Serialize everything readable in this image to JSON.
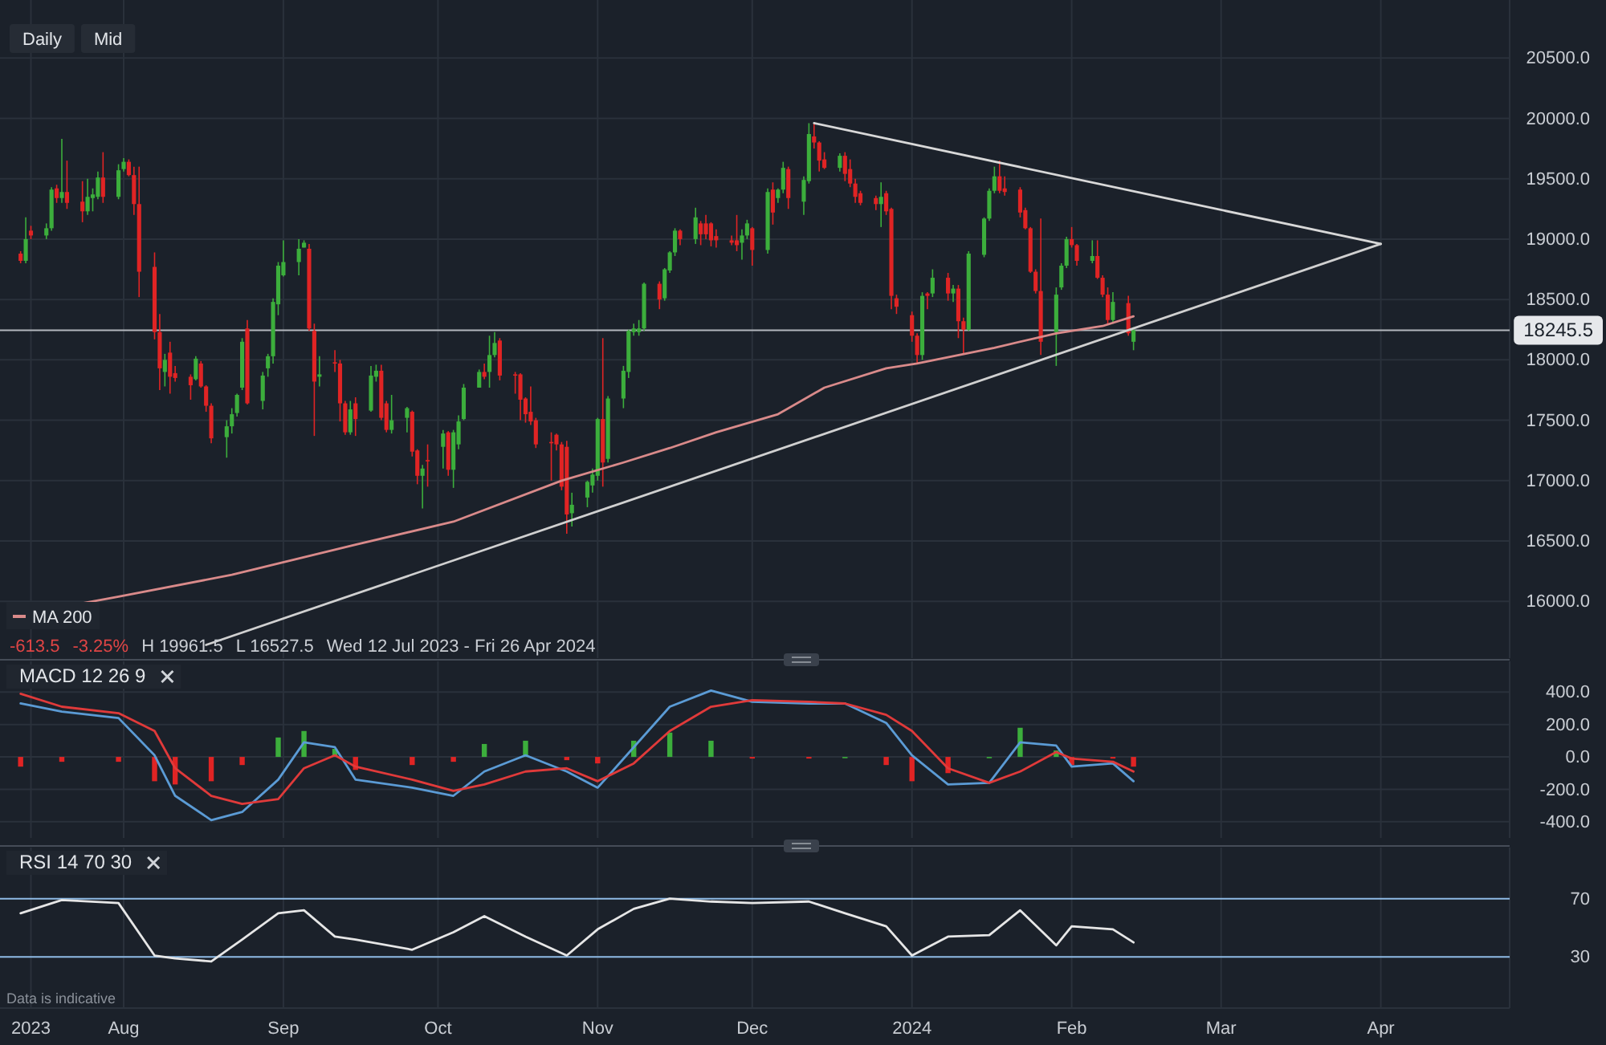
{
  "chart_data": [
    {
      "type": "candlestick",
      "annotations": [
        "Daily",
        "Mid",
        "-613.5",
        "-3.25%",
        "H 19961.5",
        "L 16527.5",
        "Wed 12 Jul 2023 - Fri 26 Apr 2024"
      ],
      "xlim": [
        "2023-07-08",
        "2024-04-26"
      ],
      "ylim": [
        15530,
        20980
      ],
      "xticks": [
        {
          "value": "2023-07-14",
          "label": null
        },
        {
          "value": "2023-08-01",
          "label": null
        },
        {
          "value": "2023-09-01",
          "label": null
        },
        {
          "value": "2023-10-01",
          "label": null
        },
        {
          "value": "2023-11-01",
          "label": null
        },
        {
          "value": "2023-12-01",
          "label": null
        },
        {
          "value": "2024-01-01",
          "label": null
        },
        {
          "value": "2024-02-01",
          "label": null
        },
        {
          "value": "2024-03-01",
          "label": null
        },
        {
          "value": "2024-04-01",
          "label": null
        }
      ],
      "yticks": [
        {
          "value": 16000,
          "label": "16000.0"
        },
        {
          "value": 16500,
          "label": "16500.0"
        },
        {
          "value": 17000,
          "label": "17000.0"
        },
        {
          "value": 17500,
          "label": "17500.0"
        },
        {
          "value": 18000,
          "label": "18000.0"
        },
        {
          "value": 18500,
          "label": "18500.0"
        },
        {
          "value": 19000,
          "label": "19000.0"
        },
        {
          "value": 19500,
          "label": "19500.0"
        },
        {
          "value": 20000,
          "label": "20000.0"
        },
        {
          "value": 20500,
          "label": "20500.0"
        }
      ],
      "tick_labels": "y",
      "grid": true,
      "legend": "bottom left",
      "ref_lines": [
        {
          "axis": "y",
          "value": 18245.5,
          "label": "18245.5",
          "color": "#b4b8be"
        }
      ],
      "x": [
        "2023-07-12",
        "2023-07-13",
        "2023-07-14",
        "2023-07-17",
        "2023-07-18",
        "2023-07-19",
        "2023-07-20",
        "2023-07-21",
        "2023-07-24",
        "2023-07-25",
        "2023-07-26",
        "2023-07-27",
        "2023-07-28",
        "2023-07-31",
        "2023-08-01",
        "2023-08-02",
        "2023-08-03",
        "2023-08-04",
        "2023-08-07",
        "2023-08-08",
        "2023-08-09",
        "2023-08-10",
        "2023-08-11",
        "2023-08-14",
        "2023-08-15",
        "2023-08-16",
        "2023-08-17",
        "2023-08-18",
        "2023-08-21",
        "2023-08-22",
        "2023-08-23",
        "2023-08-24",
        "2023-08-25",
        "2023-08-28",
        "2023-08-29",
        "2023-08-30",
        "2023-08-31",
        "2023-09-01",
        "2023-09-04",
        "2023-09-05",
        "2023-09-06",
        "2023-09-07",
        "2023-09-08",
        "2023-09-11",
        "2023-09-12",
        "2023-09-13",
        "2023-09-14",
        "2023-09-15",
        "2023-09-18",
        "2023-09-19",
        "2023-09-20",
        "2023-09-21",
        "2023-09-22",
        "2023-09-25",
        "2023-09-26",
        "2023-09-27",
        "2023-09-28",
        "2023-09-29",
        "2023-10-02",
        "2023-10-03",
        "2023-10-04",
        "2023-10-05",
        "2023-10-06",
        "2023-10-09",
        "2023-10-10",
        "2023-10-11",
        "2023-10-12",
        "2023-10-13",
        "2023-10-16",
        "2023-10-17",
        "2023-10-18",
        "2023-10-19",
        "2023-10-20",
        "2023-10-23",
        "2023-10-24",
        "2023-10-25",
        "2023-10-26",
        "2023-10-27",
        "2023-10-30",
        "2023-10-31",
        "2023-11-01",
        "2023-11-02",
        "2023-11-03",
        "2023-11-06",
        "2023-11-07",
        "2023-11-08",
        "2023-11-09",
        "2023-11-10",
        "2023-11-13",
        "2023-11-14",
        "2023-11-15",
        "2023-11-16",
        "2023-11-17",
        "2023-11-20",
        "2023-11-21",
        "2023-11-22",
        "2023-11-23",
        "2023-11-24",
        "2023-11-27",
        "2023-11-28",
        "2023-11-29",
        "2023-11-30",
        "2023-12-01",
        "2023-12-04",
        "2023-12-05",
        "2023-12-06",
        "2023-12-07",
        "2023-12-08",
        "2023-12-11",
        "2023-12-12",
        "2023-12-13",
        "2023-12-14",
        "2023-12-15",
        "2023-12-18",
        "2023-12-19",
        "2023-12-20",
        "2023-12-21",
        "2023-12-22",
        "2023-12-25",
        "2023-12-26",
        "2023-12-27",
        "2023-12-28",
        "2023-12-29",
        "2024-01-01",
        "2024-01-02",
        "2024-01-03",
        "2024-01-04",
        "2024-01-05",
        "2024-01-08",
        "2024-01-09",
        "2024-01-10",
        "2024-01-11",
        "2024-01-12",
        "2024-01-15",
        "2024-01-16",
        "2024-01-17",
        "2024-01-18",
        "2024-01-19",
        "2024-01-22",
        "2024-01-23",
        "2024-01-24",
        "2024-01-25",
        "2024-01-26",
        "2024-01-29",
        "2024-01-30",
        "2024-01-31",
        "2024-02-01",
        "2024-02-02",
        "2024-02-05",
        "2024-02-06",
        "2024-02-07",
        "2024-02-08",
        "2024-02-09",
        "2024-02-12",
        "2024-02-13"
      ],
      "ohlc": [
        [
          18880,
          18900,
          18800,
          18820
        ],
        [
          18820,
          19180,
          18800,
          19000
        ],
        [
          19070,
          19110,
          19000,
          19030
        ],
        [
          19030,
          19130,
          19000,
          19090
        ],
        [
          19090,
          19430,
          19070,
          19410
        ],
        [
          19420,
          19450,
          19300,
          19340
        ],
        [
          19340,
          19830,
          19300,
          19390
        ],
        [
          19390,
          19650,
          19250,
          19300
        ],
        [
          19310,
          19480,
          19140,
          19230
        ],
        [
          19230,
          19500,
          19200,
          19350
        ],
        [
          19340,
          19420,
          19230,
          19370
        ],
        [
          19350,
          19560,
          19330,
          19510
        ],
        [
          19510,
          19720,
          19300,
          19350
        ],
        [
          19350,
          19620,
          19330,
          19570
        ],
        [
          19580,
          19670,
          19560,
          19640
        ],
        [
          19640,
          19660,
          19520,
          19530
        ],
        [
          19530,
          19600,
          19200,
          19290
        ],
        [
          19290,
          19600,
          18520,
          18730
        ],
        [
          18770,
          18890,
          18170,
          18230
        ],
        [
          18230,
          18380,
          17750,
          17930
        ],
        [
          17900,
          18050,
          17780,
          18000
        ],
        [
          18060,
          18150,
          17720,
          17860
        ],
        [
          17890,
          17950,
          17820,
          17850
        ],
        [
          17860,
          17880,
          17670,
          17790
        ],
        [
          17840,
          18030,
          17830,
          18010
        ],
        [
          17970,
          17990,
          17770,
          17780
        ],
        [
          17780,
          17790,
          17570,
          17620
        ],
        [
          17620,
          17640,
          17310,
          17350
        ],
        [
          17360,
          17500,
          17190,
          17450
        ],
        [
          17450,
          17600,
          17390,
          17550
        ],
        [
          17560,
          17720,
          17530,
          17710
        ],
        [
          17770,
          18180,
          17750,
          18150
        ],
        [
          18260,
          18330,
          17630,
          17640
        ],
        [
          17660,
          17900,
          17590,
          17870
        ],
        [
          17930,
          18050,
          17860,
          18030
        ],
        [
          18030,
          18510,
          17970,
          18480
        ],
        [
          18460,
          18810,
          18370,
          18780
        ],
        [
          18700,
          18990,
          18690,
          18810
        ],
        [
          18810,
          19000,
          18700,
          18920
        ],
        [
          18930,
          18990,
          18930,
          18970
        ],
        [
          18920,
          18960,
          18240,
          18260
        ],
        [
          18240,
          18300,
          17370,
          17820
        ],
        [
          17860,
          18030,
          17780,
          17880
        ],
        [
          17980,
          18080,
          17900,
          17970
        ],
        [
          17970,
          18000,
          17490,
          17640
        ],
        [
          17640,
          17660,
          17380,
          17400
        ],
        [
          17400,
          17660,
          17380,
          17590
        ],
        [
          17640,
          17690,
          17370,
          17510
        ],
        [
          17580,
          17950,
          17570,
          17870
        ],
        [
          17860,
          17960,
          17820,
          17910
        ],
        [
          17910,
          17960,
          17500,
          17520
        ],
        [
          17640,
          17660,
          17400,
          17420
        ],
        [
          17420,
          17710,
          17390,
          17500
        ],
        [
          17520,
          17610,
          17400,
          17600
        ],
        [
          17570,
          17580,
          17200,
          17240
        ],
        [
          17250,
          17260,
          16970,
          17040
        ],
        [
          17040,
          17130,
          16770,
          17100
        ],
        [
          17170,
          17300,
          16950,
          17160
        ],
        [
          17280,
          17420,
          17100,
          17390
        ],
        [
          17400,
          17410,
          17040,
          17090
        ],
        [
          17090,
          17420,
          16940,
          17400
        ],
        [
          17300,
          17540,
          17260,
          17490
        ],
        [
          17510,
          17800,
          17500,
          17770
        ],
        [
          17770,
          17920,
          17770,
          17900
        ],
        [
          17900,
          17970,
          17840,
          17860
        ],
        [
          17900,
          18200,
          17770,
          18040
        ],
        [
          18040,
          18230,
          18020,
          18140
        ],
        [
          18160,
          18180,
          17830,
          17870
        ],
        [
          17880,
          17900,
          17720,
          17870
        ],
        [
          17880,
          17890,
          17500,
          17670
        ],
        [
          17680,
          17690,
          17480,
          17550
        ],
        [
          17570,
          17780,
          17460,
          17490
        ],
        [
          17500,
          17520,
          17270,
          17300
        ],
        [
          17320,
          17400,
          17000,
          17310
        ],
        [
          17380,
          17390,
          17250,
          17300
        ],
        [
          17300,
          17320,
          16920,
          16950
        ],
        [
          17280,
          17330,
          16560,
          16720
        ],
        [
          16730,
          16900,
          16620,
          16800
        ],
        [
          16860,
          17000,
          16780,
          16990
        ],
        [
          16960,
          17100,
          16900,
          17050
        ],
        [
          17040,
          17520,
          17000,
          17510
        ],
        [
          17510,
          18180,
          16950,
          17150
        ],
        [
          17180,
          17700,
          17150,
          17680
        ],
        [
          17680,
          17950,
          17600,
          17910
        ],
        [
          17900,
          18250,
          17850,
          18240
        ],
        [
          18230,
          18300,
          18200,
          18260
        ],
        [
          18230,
          18330,
          18200,
          18260
        ],
        [
          18260,
          18640,
          18240,
          18630
        ],
        [
          18630,
          18650,
          18420,
          18500
        ],
        [
          18510,
          18760,
          18490,
          18750
        ],
        [
          18740,
          18900,
          18720,
          18890
        ],
        [
          18890,
          19090,
          18860,
          19070
        ],
        [
          19070,
          19080,
          18950,
          19000
        ],
        [
          19000,
          19260,
          18960,
          19180
        ],
        [
          19130,
          19150,
          18950,
          19040
        ],
        [
          19130,
          19200,
          19000,
          19040
        ],
        [
          19130,
          19140,
          18940,
          18990
        ],
        [
          19025,
          19080,
          18930,
          18990
        ],
        [
          18990,
          19030,
          18950,
          18970
        ],
        [
          18990,
          19200,
          18900,
          18950
        ],
        [
          18970,
          19080,
          18830,
          19030
        ],
        [
          19030,
          19160,
          19000,
          19130
        ],
        [
          19090,
          19100,
          18780,
          18910
        ],
        [
          18910,
          19420,
          18880,
          19390
        ],
        [
          19410,
          19470,
          19120,
          19220
        ],
        [
          19340,
          19420,
          19300,
          19410
        ],
        [
          19410,
          19640,
          19380,
          19590
        ],
        [
          19580,
          19600,
          19250,
          19340
        ],
        [
          19310,
          19520,
          19200,
          19490
        ],
        [
          19480,
          19960,
          19460,
          19870
        ],
        [
          19850,
          19960,
          19750,
          19800
        ],
        [
          19800,
          19810,
          19560,
          19650
        ],
        [
          19660,
          19720,
          19580,
          19590
        ],
        [
          19590,
          19710,
          19560,
          19690
        ],
        [
          19690,
          19720,
          19480,
          19540
        ],
        [
          19580,
          19660,
          19430,
          19460
        ],
        [
          19460,
          19500,
          19300,
          19350
        ],
        [
          19380,
          19400,
          19280,
          19300
        ],
        [
          19340,
          19360,
          19240,
          19290
        ],
        [
          19290,
          19470,
          19100,
          19350
        ],
        [
          19380,
          19400,
          19200,
          19230
        ],
        [
          19250,
          19260,
          18420,
          18530
        ],
        [
          18510,
          18540,
          18380,
          18440
        ],
        [
          18370,
          18400,
          18150,
          18200
        ],
        [
          18200,
          18220,
          17970,
          18040
        ],
        [
          18040,
          18560,
          18000,
          18530
        ],
        [
          18550,
          18560,
          18420,
          18530
        ],
        [
          18550,
          18750,
          18520,
          18680
        ],
        [
          18680,
          18720,
          18490,
          18550
        ],
        [
          18550,
          18620,
          18480,
          18590
        ],
        [
          18590,
          18620,
          18180,
          18320
        ],
        [
          18320,
          18350,
          18050,
          18250
        ],
        [
          18250,
          18900,
          18240,
          18880
        ],
        [
          18870,
          19180,
          18850,
          19170
        ],
        [
          19170,
          19420,
          19150,
          19400
        ],
        [
          19400,
          19600,
          19380,
          19520
        ],
        [
          19520,
          19650,
          19380,
          19400
        ],
        [
          19420,
          19520,
          19360,
          19390
        ],
        [
          19410,
          19430,
          19180,
          19220
        ],
        [
          19240,
          19260,
          19080,
          19090
        ],
        [
          19090,
          19100,
          18720,
          18730
        ],
        [
          18730,
          18750,
          18550,
          18570
        ],
        [
          18570,
          19170,
          18040,
          18150
        ],
        [
          18230,
          18600,
          17950,
          18540
        ],
        [
          18600,
          18800,
          18580,
          18780
        ],
        [
          18780,
          19020,
          18760,
          19000
        ],
        [
          19000,
          19100,
          18930,
          18950
        ],
        [
          18950,
          18960,
          18780,
          18820
        ],
        [
          18820,
          18990,
          18800,
          18860
        ],
        [
          18860,
          18990,
          18670,
          18680
        ],
        [
          18680,
          18700,
          18520,
          18540
        ],
        [
          18540,
          18600,
          18300,
          18330
        ],
        [
          18330,
          18560,
          18300,
          18480
        ],
        [
          18470,
          18530,
          18200,
          18220
        ],
        [
          18150,
          18270,
          18080,
          18245.5
        ]
      ],
      "series": [
        {
          "type": "line",
          "name": "MA 200",
          "color": "#d98a8a",
          "x": [
            "2023-07-12",
            "2023-07-31",
            "2023-08-22",
            "2023-09-15",
            "2023-10-04",
            "2023-10-25",
            "2023-11-06",
            "2023-11-15",
            "2023-11-24",
            "2023-12-06",
            "2023-12-15",
            "2023-12-27",
            "2024-01-02",
            "2024-01-17",
            "2024-01-29",
            "2024-02-07",
            "2024-02-13"
          ],
          "values": [
            15890,
            16040,
            16220,
            16470,
            16660,
            17000,
            17150,
            17270,
            17400,
            17550,
            17770,
            17930,
            17970,
            18100,
            18220,
            18280,
            18360
          ]
        },
        {
          "type": "line",
          "color": "#d8d8d8",
          "x": [
            "2023-12-13",
            "2024-04-01"
          ],
          "values": [
            19960,
            18960
          ]
        },
        {
          "type": "line",
          "color": "#d0d0d0",
          "x": [
            "2023-08-17",
            "2024-04-01"
          ],
          "values": [
            15640,
            18960
          ]
        }
      ]
    },
    {
      "type": "line",
      "title": "MACD 12 26 9",
      "xlim": [
        "2023-07-08",
        "2024-04-26"
      ],
      "ylim": [
        -500,
        590
      ],
      "xticks": [
        {
          "value": "2023-07-14",
          "label": null
        },
        {
          "value": "2023-08-01",
          "label": null
        },
        {
          "value": "2023-09-01",
          "label": null
        },
        {
          "value": "2023-10-01",
          "label": null
        },
        {
          "value": "2023-11-01",
          "label": null
        },
        {
          "value": "2023-12-01",
          "label": null
        },
        {
          "value": "2024-01-01",
          "label": null
        },
        {
          "value": "2024-02-01",
          "label": null
        },
        {
          "value": "2024-03-01",
          "label": null
        },
        {
          "value": "2024-04-01",
          "label": null
        }
      ],
      "yticks": [
        {
          "value": -400,
          "label": "-400.0"
        },
        {
          "value": -200,
          "label": "-200.0"
        },
        {
          "value": 0,
          "label": "0.0"
        },
        {
          "value": 200,
          "label": "200.0"
        },
        {
          "value": 400,
          "label": "400.0"
        }
      ],
      "tick_labels": "y",
      "grid": true,
      "x": [
        "2023-07-12",
        "2023-07-20",
        "2023-07-31",
        "2023-08-07",
        "2023-08-11",
        "2023-08-18",
        "2023-08-24",
        "2023-08-31",
        "2023-09-05",
        "2023-09-11",
        "2023-09-15",
        "2023-09-26",
        "2023-10-04",
        "2023-10-10",
        "2023-10-18",
        "2023-10-26",
        "2023-11-01",
        "2023-11-08",
        "2023-11-15",
        "2023-11-23",
        "2023-12-01",
        "2023-12-12",
        "2023-12-19",
        "2023-12-27",
        "2024-01-01",
        "2024-01-08",
        "2024-01-16",
        "2024-01-22",
        "2024-01-29",
        "2024-02-01",
        "2024-02-09",
        "2024-02-13"
      ],
      "series": [
        {
          "type": "bar",
          "colors": [
            "#e02424",
            "#e02424",
            "#e02424",
            "#e02424",
            "#e02424",
            "#e02424",
            "#e02424",
            "#3cae3c",
            "#3cae3c",
            "#3cae3c",
            "#e02424",
            "#e02424",
            "#e02424",
            "#3cae3c",
            "#3cae3c",
            "#e02424",
            "#e02424",
            "#3cae3c",
            "#3cae3c",
            "#3cae3c",
            "#e02424",
            "#e02424",
            "#3cae3c",
            "#e02424",
            "#e02424",
            "#e02424",
            "#3cae3c",
            "#3cae3c",
            "#3cae3c",
            "#e02424",
            "#e02424",
            "#e02424"
          ],
          "values": [
            -60,
            -30,
            -30,
            -150,
            -170,
            -150,
            -50,
            120,
            160,
            50,
            -80,
            -50,
            -30,
            80,
            100,
            -20,
            -40,
            100,
            150,
            100,
            -10,
            -10,
            0,
            -50,
            -150,
            -100,
            0,
            180,
            40,
            -50,
            -10,
            -60
          ]
        },
        {
          "type": "line",
          "color": "#5b9bd5",
          "values": [
            330,
            280,
            240,
            10,
            -240,
            -390,
            -340,
            -140,
            90,
            60,
            -140,
            -190,
            -240,
            -90,
            10,
            -90,
            -190,
            60,
            310,
            410,
            340,
            330,
            330,
            210,
            10,
            -170,
            -160,
            90,
            70,
            -60,
            -40,
            -150
          ]
        },
        {
          "type": "line",
          "color": "#e03a3a",
          "values": [
            390,
            310,
            270,
            160,
            -70,
            -240,
            -290,
            -260,
            -70,
            10,
            -60,
            -140,
            -210,
            -170,
            -90,
            -70,
            -150,
            -40,
            160,
            310,
            350,
            340,
            330,
            260,
            160,
            -70,
            -160,
            -90,
            30,
            -10,
            -30,
            -90
          ]
        }
      ]
    },
    {
      "type": "line",
      "title": "RSI 14 70 30",
      "annotations": [
        "Data is indicative"
      ],
      "xlim": [
        "2023-07-08",
        "2024-04-26"
      ],
      "ylim": [
        -5,
        105
      ],
      "xticks": [
        {
          "value": "2023-07-14",
          "label": "2023"
        },
        {
          "value": "2023-08-01",
          "label": "Aug"
        },
        {
          "value": "2023-09-01",
          "label": "Sep"
        },
        {
          "value": "2023-10-01",
          "label": "Oct"
        },
        {
          "value": "2023-11-01",
          "label": "Nov"
        },
        {
          "value": "2023-12-01",
          "label": "Dec"
        },
        {
          "value": "2024-01-01",
          "label": "2024"
        },
        {
          "value": "2024-02-01",
          "label": "Feb"
        },
        {
          "value": "2024-03-01",
          "label": "Mar"
        },
        {
          "value": "2024-04-01",
          "label": "Apr"
        }
      ],
      "yticks": [
        30,
        70
      ],
      "grid": "x",
      "ref_lines": [
        {
          "axis": "y",
          "value": 70,
          "color": "#8fbbe6"
        },
        {
          "axis": "y",
          "value": 30,
          "color": "#8fbbe6"
        }
      ],
      "x": [
        "2023-07-12",
        "2023-07-20",
        "2023-07-31",
        "2023-08-07",
        "2023-08-11",
        "2023-08-18",
        "2023-08-24",
        "2023-08-31",
        "2023-09-05",
        "2023-09-11",
        "2023-09-15",
        "2023-09-26",
        "2023-10-04",
        "2023-10-10",
        "2023-10-18",
        "2023-10-26",
        "2023-11-01",
        "2023-11-08",
        "2023-11-15",
        "2023-11-23",
        "2023-12-01",
        "2023-12-12",
        "2023-12-19",
        "2023-12-27",
        "2024-01-01",
        "2024-01-08",
        "2024-01-16",
        "2024-01-22",
        "2024-01-29",
        "2024-02-01",
        "2024-02-09",
        "2024-02-13"
      ],
      "series": [
        {
          "type": "line",
          "color": "#e6e6e6",
          "values": [
            60,
            69,
            67,
            31,
            29,
            27,
            42,
            60,
            62,
            44,
            42,
            35,
            47,
            58,
            44,
            31,
            49,
            63,
            70,
            68,
            67,
            68,
            60,
            51,
            31,
            44,
            45,
            62,
            38,
            51,
            49,
            40
          ]
        }
      ]
    }
  ]
}
